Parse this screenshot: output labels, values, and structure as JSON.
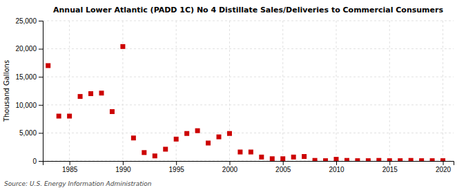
{
  "chart_data": {
    "type": "scatter",
    "title": "Annual Lower Atlantic (PADD 1C) No 4 Distillate Sales/Deliveries to Commercial Consumers",
    "ylabel": "Thousand Gallons",
    "annotations": [
      "Source: U.S. Energy Information Administration"
    ],
    "color": "#cc0000",
    "marker": "square",
    "grid": true,
    "xlim": [
      1982.5,
      2021
    ],
    "ylim": [
      0,
      25000
    ],
    "xticks": [
      1985,
      1990,
      1995,
      2000,
      2005,
      2010,
      2015,
      2020
    ],
    "yticks": [
      0,
      {
        "value": 5000,
        "label": "5,000"
      },
      {
        "value": 10000,
        "label": "10,000"
      },
      {
        "value": 15000,
        "label": "15,000"
      },
      {
        "value": 20000,
        "label": "20,000"
      },
      {
        "value": 25000,
        "label": "25,000"
      }
    ],
    "x": [
      1983,
      1984,
      1985,
      1986,
      1987,
      1988,
      1989,
      1990,
      1991,
      1992,
      1993,
      1994,
      1995,
      1996,
      1997,
      1998,
      1999,
      2000,
      2001,
      2002,
      2003,
      2004,
      2005,
      2006,
      2007,
      2008,
      2009,
      2010,
      2011,
      2012,
      2013,
      2014,
      2015,
      2016,
      2017,
      2018,
      2019,
      2020
    ],
    "values": [
      17000,
      8000,
      8000,
      11500,
      12000,
      12100,
      8800,
      20400,
      4100,
      1500,
      900,
      2100,
      3900,
      4900,
      5400,
      3200,
      4300,
      4900,
      1600,
      1600,
      700,
      400,
      400,
      700,
      800,
      100,
      50,
      300,
      100,
      50,
      50,
      100,
      50,
      50,
      100,
      50,
      50,
      50
    ]
  }
}
